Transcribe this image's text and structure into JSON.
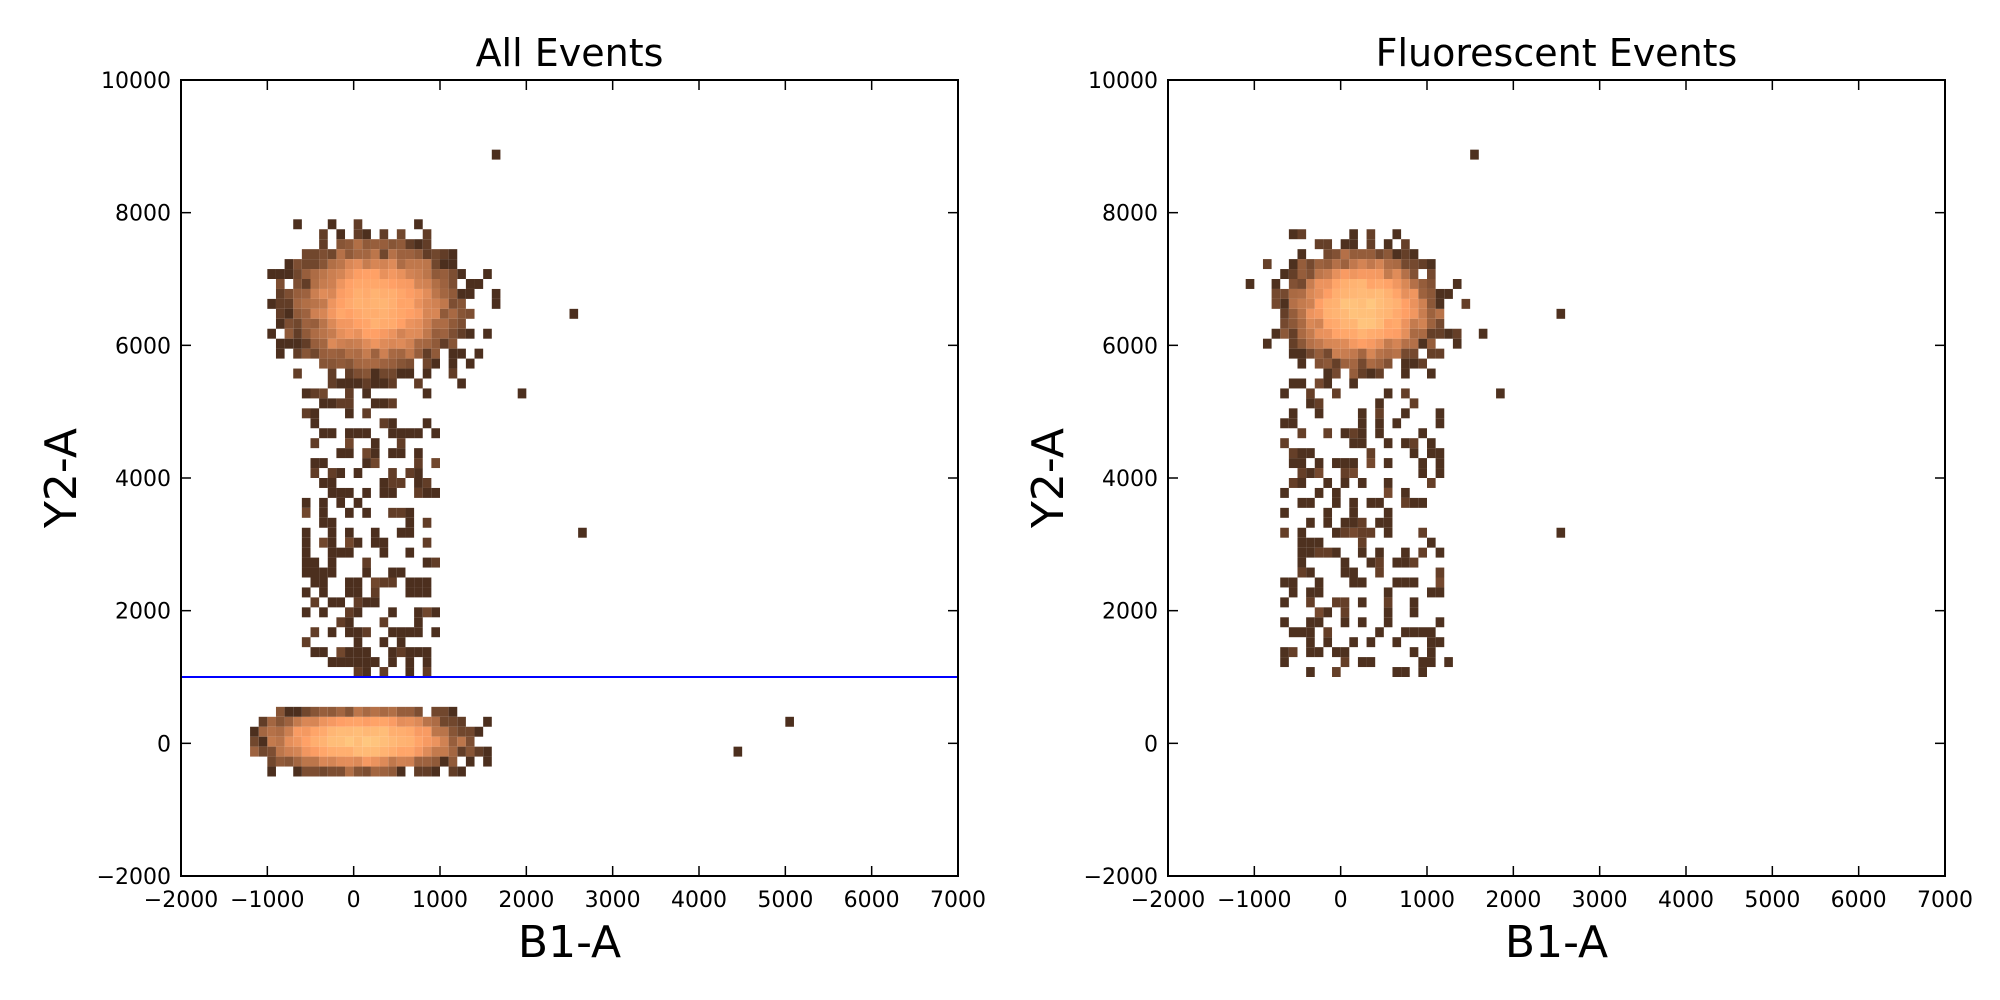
{
  "chart_data": [
    {
      "type": "heatmap",
      "title": "All Events",
      "xlabel": "B1-A",
      "ylabel": "Y2-A",
      "xlim": [
        -2000,
        7000
      ],
      "ylim": [
        -2000,
        10000
      ],
      "xticks": [
        "−2000",
        "−1000",
        "0",
        "1000",
        "2000",
        "3000",
        "4000",
        "5000",
        "6000",
        "7000"
      ],
      "yticks": [
        "−2000",
        "0",
        "2000",
        "4000",
        "6000",
        "8000",
        "10000"
      ],
      "grid": false,
      "colormap": "copper (black → light orange)",
      "threshold_line": {
        "y": 1000,
        "color": "#0000ff"
      },
      "clusters": [
        {
          "name": "upper",
          "center": [
            250,
            6600
          ],
          "spread": [
            380,
            380
          ],
          "extent_x": [
            -1000,
            1700
          ],
          "extent_y": [
            5400,
            7900
          ]
        },
        {
          "name": "lower",
          "center": [
            100,
            50
          ],
          "spread": [
            450,
            180
          ],
          "extent_x": [
            -1200,
            1600
          ],
          "extent_y": [
            -500,
            500
          ]
        }
      ],
      "scatter_x_range": [
        -600,
        1000
      ],
      "scatter_y_range": [
        1000,
        5400
      ],
      "outliers": [
        [
          1600,
          8850
        ],
        [
          2500,
          6400
        ],
        [
          1900,
          5300
        ],
        [
          2650,
          3200
        ],
        [
          5000,
          300
        ],
        [
          4450,
          -100
        ]
      ]
    },
    {
      "type": "heatmap",
      "title": "Fluorescent Events",
      "xlabel": "B1-A",
      "ylabel": "Y2-A",
      "xlim": [
        -2000,
        7000
      ],
      "ylim": [
        -2000,
        10000
      ],
      "xticks": [
        "−2000",
        "−1000",
        "0",
        "1000",
        "2000",
        "3000",
        "4000",
        "5000",
        "6000",
        "7000"
      ],
      "yticks": [
        "−2000",
        "0",
        "2000",
        "4000",
        "6000",
        "8000",
        "10000"
      ],
      "grid": false,
      "colormap": "copper (black → light orange)",
      "clusters": [
        {
          "name": "upper",
          "center": [
            250,
            6550
          ],
          "spread": [
            330,
            330
          ],
          "extent_x": [
            -1000,
            1700
          ],
          "extent_y": [
            5500,
            7800
          ]
        }
      ],
      "scatter_x_range": [
        -700,
        1200
      ],
      "scatter_y_range": [
        1100,
        5500
      ],
      "outliers": [
        [
          1550,
          8850
        ],
        [
          2500,
          6400
        ],
        [
          1850,
          5250
        ],
        [
          2550,
          3200
        ],
        [
          -1100,
          6950
        ],
        [
          1200,
          1150
        ]
      ]
    }
  ]
}
